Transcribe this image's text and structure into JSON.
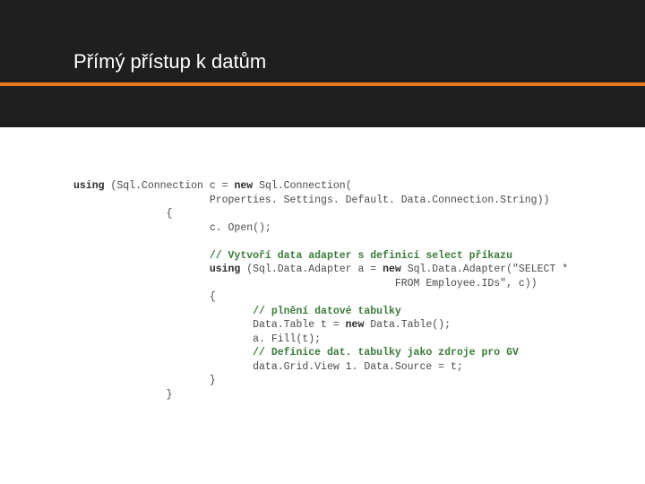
{
  "colors": {
    "header_bg": "#1f1f1f",
    "divider": "#e87722",
    "title_color": "#ffffff",
    "code_color": "#4a4a4a",
    "keyword_color": "#2b2b2b",
    "comment_color": "#3a7a3a",
    "slide_bg": "#ffffff"
  },
  "layout": {
    "title_fontsize": 22,
    "code_fontsize": 11.5,
    "code_font": "Consolas, 'Courier New', monospace",
    "divider_height": 4,
    "header_dark_bottom_height": 46
  },
  "title": "Přímý přístup k datům",
  "code": {
    "l01_kw": "using",
    "l01_rest": " (Sql.Connection c = ",
    "l01_kw2": "new",
    "l01_rest2": " Sql.Connection(",
    "l02": "                      Properties. Settings. Default. Data.Connection.String))",
    "l03": "               {",
    "l04": "                      c. Open();",
    "l05": "",
    "l06_cmt": "                      // Vytvoří data adapter s definicí select příkazu",
    "l07_pre": "                      ",
    "l07_kw": "using",
    "l07_mid": " (Sql.Data.Adapter a = ",
    "l07_kw2": "new",
    "l07_rest": " Sql.Data.Adapter(\"SELECT *",
    "l08": "                                                    FROM Employee.IDs\", c))",
    "l09": "                      {",
    "l10_cmt": "                             // plnění datové tabulky",
    "l11_pre": "                             Data.Table t = ",
    "l11_kw": "new",
    "l11_rest": " Data.Table();",
    "l12": "                             a. Fill(t);",
    "l13_cmt": "                             // Definice dat. tabulky jako zdroje pro GV",
    "l14": "                             data.Grid.View 1. Data.Source = t;",
    "l15": "                      }",
    "l16": "               }"
  }
}
